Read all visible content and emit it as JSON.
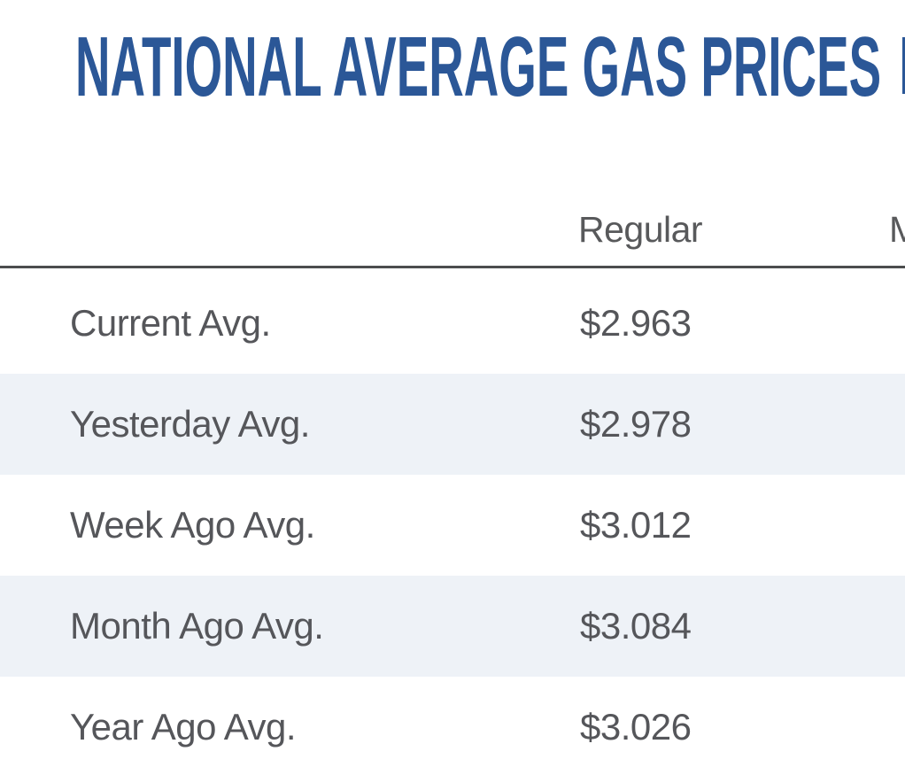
{
  "page": {
    "title": "NATIONAL AVERAGE GAS PRICES"
  },
  "colors": {
    "title_blue": "#2b5797",
    "text_gray": "#55565a",
    "header_gray": "#58595b",
    "divider_gray": "#4c4d4e",
    "row_stripe": "#eef2f7",
    "background": "#ffffff"
  },
  "table": {
    "columns": [
      {
        "label": ""
      },
      {
        "label": "Regular"
      },
      {
        "label": "M"
      }
    ],
    "rows": [
      {
        "label": "Current Avg.",
        "regular": "$2.963"
      },
      {
        "label": "Yesterday Avg.",
        "regular": "$2.978"
      },
      {
        "label": "Week Ago Avg.",
        "regular": "$3.012"
      },
      {
        "label": "Month Ago Avg.",
        "regular": "$3.084"
      },
      {
        "label": "Year Ago Avg.",
        "regular": "$3.026"
      }
    ]
  }
}
